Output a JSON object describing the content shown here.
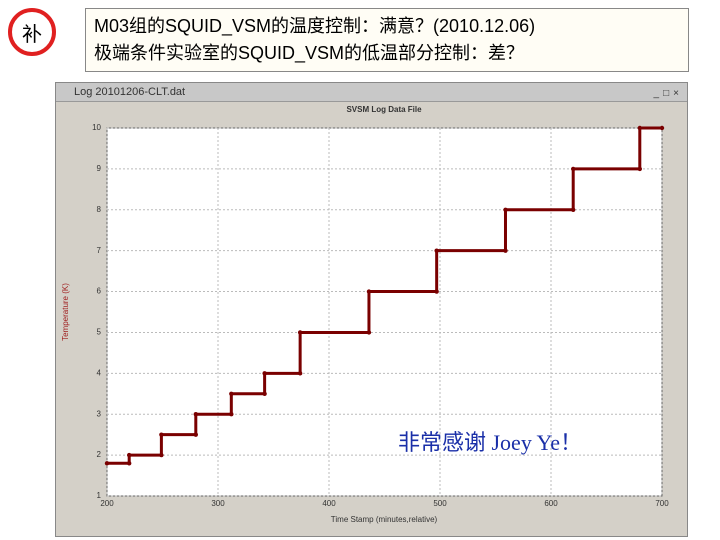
{
  "badge": "补",
  "headline": {
    "line1": "M03组的SQUID_VSM的温度控制：满意？(2010.12.06)",
    "line2": "极端条件实验室的SQUID_VSM的低温部分控制：差？"
  },
  "window_title": "Log 20101206-CLT.dat",
  "thanks": "非常感谢 Joey Ye！",
  "chart_data": {
    "type": "line",
    "title": "SVSM Log Data File",
    "x_label": "Time Stamp (minutes,relative)",
    "y_label": "Temperature (K)",
    "x": [
      200,
      220,
      220,
      249,
      249,
      280,
      280,
      312,
      312,
      342,
      342,
      374,
      374,
      436,
      436,
      497,
      497,
      559,
      559,
      620,
      620,
      680,
      680,
      700
    ],
    "values": [
      1.8,
      1.8,
      2,
      2,
      2.5,
      2.5,
      3,
      3,
      3.5,
      3.5,
      4,
      4,
      5,
      5,
      6,
      6,
      7,
      7,
      8,
      8,
      9,
      9,
      10,
      10
    ],
    "color": "#7a0000",
    "xlim": [
      200,
      700
    ],
    "xticks": [
      200,
      300,
      400,
      500,
      600,
      700
    ],
    "ylim": [
      1,
      10
    ],
    "yticks": [
      1,
      2,
      3,
      4,
      5,
      6,
      7,
      8,
      9,
      10
    ],
    "grid": true
  }
}
